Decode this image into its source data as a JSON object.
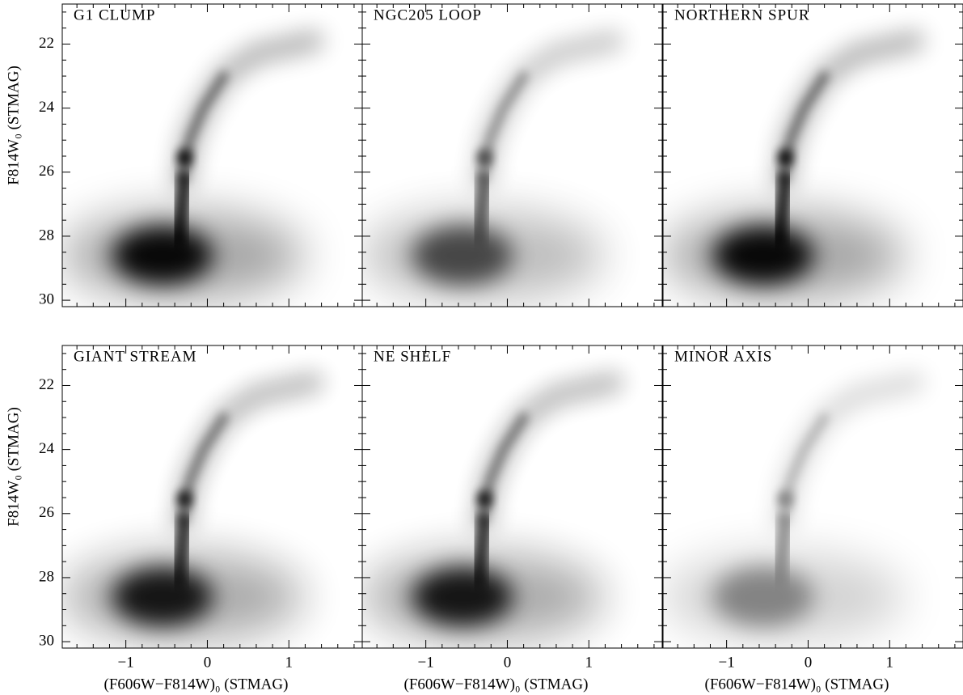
{
  "chart_data": {
    "type": "hess_grid",
    "panels": [
      {
        "title": "G1 CLUMP"
      },
      {
        "title": "NGC205 LOOP"
      },
      {
        "title": "NORTHERN SPUR"
      },
      {
        "title": "GIANT STREAM"
      },
      {
        "title": "NE SHELF"
      },
      {
        "title": "MINOR AXIS"
      }
    ],
    "xlabel": "(F606W−F814W)₀ (STMAG)",
    "ylabel": "F814W₀ (STMAG)",
    "xlim": [
      -1.78,
      1.9
    ],
    "ylim": [
      20.75,
      30.2
    ],
    "xticks": [
      {
        "value": -1,
        "label": "−1"
      },
      0,
      1
    ],
    "yticks": [
      22,
      24,
      26,
      28,
      30
    ],
    "xminorticks": [
      -1.6,
      -1.4,
      -1.2,
      -0.8,
      -0.6,
      -0.4,
      -0.2,
      0.2,
      0.4,
      0.6,
      0.8,
      1.2,
      1.4,
      1.6,
      1.8
    ],
    "yminorticks": [
      21,
      21.5,
      22.5,
      23,
      23.5,
      24.5,
      25,
      25.5,
      26.5,
      27,
      27.5,
      28.5,
      29,
      29.5
    ]
  }
}
